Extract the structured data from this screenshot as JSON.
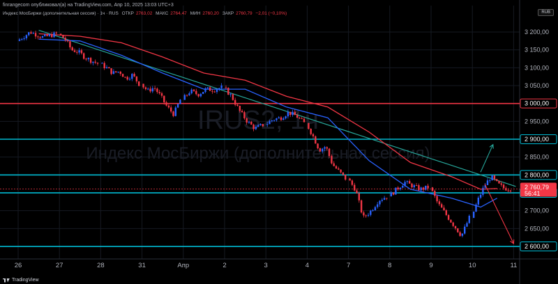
{
  "header": {
    "publisher_line": "finrangecom опубликовал(а) на TradingView.com, Апр 10, 2025 13:03 UTC+3",
    "instrument": "Индекс МосБиржи (дополнительная сессия) · 1ч · RUS",
    "open_label": "ОТКР",
    "open_value": "2763,02",
    "high_label": "МАКС",
    "high_value": "2764,47",
    "low_label": "МИН",
    "low_value": "2760,20",
    "close_label": "ЗАКР",
    "close_value": "2760,79",
    "change_value": "−2,01 (−0,10%)"
  },
  "currency_button": "RUB",
  "brand": "TradingView",
  "colors": {
    "up": "#2962ff",
    "down": "#f23645",
    "support_line": "#00bcd4",
    "resistance_line": "#f23645",
    "ma_blue": "#2962ff",
    "ma_red": "#f23645",
    "trendline": "#26a69a",
    "arrow_up": "#26a69a",
    "arrow_down": "#f23645"
  },
  "chart_data": {
    "type": "candlestick",
    "watermark_symbol": "IRUS2, 1ч",
    "watermark_name": "Индекс МосБиржи (дополнительная сессия)",
    "x_tick_labels": [
      "26",
      "27",
      "28",
      "31",
      "Апр",
      "2",
      "3",
      "4",
      "7",
      "8",
      "9",
      "10",
      "11"
    ],
    "y_axis": {
      "ticks": [
        3200,
        3150,
        3100,
        3050,
        3000,
        2950,
        2900,
        2850,
        2800,
        2750,
        2700,
        2650,
        2600
      ],
      "tick_labels": [
        "3 200,00",
        "3 150,00",
        "3 100,00",
        "3 050,00",
        "3 000,00",
        "2 950,00",
        "2 900,00",
        "2 850,00",
        "2 800,00",
        "2 750,00",
        "2 700,00",
        "2 650,00",
        "2 600,00"
      ],
      "range": [
        2565,
        3235
      ]
    },
    "horizontal_levels": [
      {
        "value": 3000,
        "label": "3 000,00",
        "kind": "resistance"
      },
      {
        "value": 2900,
        "label": "2 900,00",
        "kind": "support"
      },
      {
        "value": 2800,
        "label": "2 800,00",
        "kind": "support"
      },
      {
        "value": 2750,
        "label": "2 750,00",
        "kind": "support"
      },
      {
        "value": 2600,
        "label": "2 600,00",
        "kind": "support"
      }
    ],
    "last_price": {
      "value": 2760.79,
      "label": "2 760,79",
      "countdown": "56:41"
    },
    "trendline": {
      "from": {
        "session": 0.5,
        "price": 3205
      },
      "to": {
        "session": 12.05,
        "price": 2768
      }
    },
    "arrows": [
      {
        "direction": "up",
        "from": {
          "session": 11.2,
          "price": 2808
        },
        "to": {
          "session": 11.5,
          "price": 2885
        }
      },
      {
        "direction": "down",
        "from": {
          "session": 11.3,
          "price": 2775
        },
        "to": {
          "session": 12.0,
          "price": 2608
        }
      }
    ],
    "sessions": [
      {
        "label": "26",
        "path": [
          3175,
          3200,
          3185,
          3195
        ]
      },
      {
        "label": "27",
        "path": [
          3195,
          3180,
          3150,
          3145,
          3130,
          3120,
          3112
        ]
      },
      {
        "label": "28",
        "path": [
          3112,
          3100,
          3085,
          3090,
          3070,
          3080,
          3055
        ]
      },
      {
        "label": "31",
        "path": [
          3055,
          3035,
          3045,
          3020,
          2990,
          2970,
          3010
        ]
      },
      {
        "label": "Апр",
        "path": [
          3010,
          3035,
          3025,
          3040,
          3038,
          3045
        ]
      },
      {
        "label": "2",
        "path": [
          3045,
          3020,
          2980,
          2950,
          2930,
          2940
        ]
      },
      {
        "label": "3",
        "path": [
          2940,
          2955,
          2960,
          2975,
          2965,
          2945
        ]
      },
      {
        "label": "4",
        "path": [
          2945,
          2910,
          2870,
          2880,
          2830,
          2810,
          2790
        ]
      },
      {
        "label": "7",
        "path": [
          2790,
          2760,
          2680,
          2700,
          2730,
          2740
        ]
      },
      {
        "label": "8",
        "path": [
          2740,
          2760,
          2780,
          2770,
          2760,
          2765
        ]
      },
      {
        "label": "9",
        "path": [
          2765,
          2720,
          2690,
          2660,
          2630,
          2680
        ]
      },
      {
        "label": "10",
        "path": [
          2680,
          2730,
          2770,
          2795,
          2775,
          2763,
          2761
        ]
      }
    ],
    "ma_fast": [
      [
        0.5,
        3180
      ],
      [
        1.5,
        3175
      ],
      [
        2.5,
        3135
      ],
      [
        3.5,
        3085
      ],
      [
        4.5,
        3040
      ],
      [
        5.5,
        3040
      ],
      [
        6.5,
        2990
      ],
      [
        7.5,
        2960
      ],
      [
        8.5,
        2840
      ],
      [
        9.5,
        2760
      ],
      [
        10.5,
        2735
      ],
      [
        11.2,
        2710
      ],
      [
        11.6,
        2735
      ]
    ],
    "ma_slow": [
      [
        0.5,
        3195
      ],
      [
        1.5,
        3188
      ],
      [
        2.5,
        3170
      ],
      [
        3.5,
        3130
      ],
      [
        4.5,
        3085
      ],
      [
        5.5,
        3065
      ],
      [
        6.5,
        3020
      ],
      [
        7.5,
        2990
      ],
      [
        8.5,
        2920
      ],
      [
        9.5,
        2835
      ],
      [
        10.5,
        2795
      ],
      [
        11.2,
        2760
      ],
      [
        11.6,
        2762
      ]
    ]
  }
}
